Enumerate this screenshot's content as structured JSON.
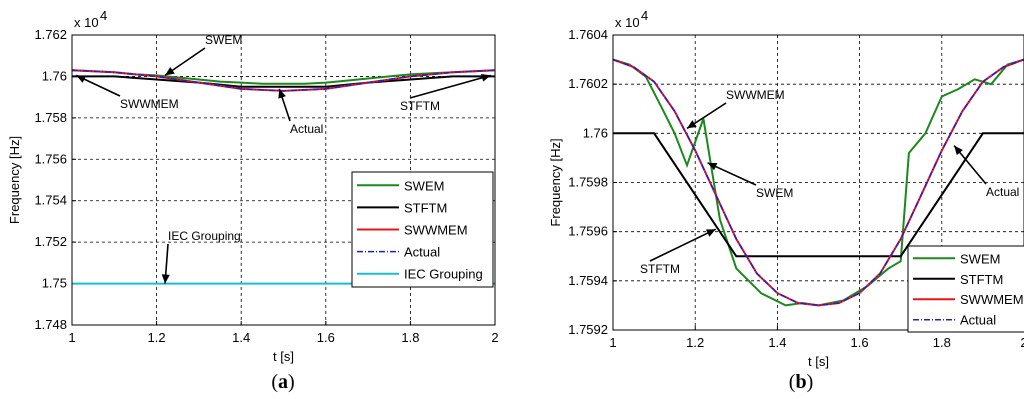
{
  "chart_data": [
    {
      "type": "line",
      "caption": "a",
      "exponent": "x 10",
      "exponent_power": "4",
      "xlabel": "t [s]",
      "ylabel": "Frequency [Hz]",
      "xlim": [
        1,
        2
      ],
      "ylim": [
        1.748,
        1.762
      ],
      "xticks": [
        "1",
        "1.2",
        "1.4",
        "1.6",
        "1.8",
        "2"
      ],
      "yticks": [
        "1.748",
        "1.75",
        "1.752",
        "1.754",
        "1.756",
        "1.758",
        "1.76",
        "1.762"
      ],
      "grid": true,
      "legend_position": "lower-right",
      "series": [
        {
          "name": "SWEM",
          "color": "#1a8a1a",
          "x": [
            1,
            1.05,
            1.1,
            1.15,
            1.2,
            1.25,
            1.3,
            1.35,
            1.4,
            1.45,
            1.5,
            1.55,
            1.6,
            1.65,
            1.7,
            1.75,
            1.8,
            1.85,
            1.9,
            1.95,
            2
          ],
          "y": [
            1.7603,
            1.76025,
            1.7602,
            1.7601,
            1.76005,
            1.75995,
            1.75985,
            1.75975,
            1.7597,
            1.75965,
            1.75965,
            1.75965,
            1.7597,
            1.7598,
            1.7599,
            1.76,
            1.7601,
            1.76015,
            1.7602,
            1.76025,
            1.7603
          ]
        },
        {
          "name": "STFTM",
          "color": "#000000",
          "x": [
            1,
            1.1,
            1.2,
            1.3,
            1.4,
            1.5,
            1.6,
            1.7,
            1.8,
            1.9,
            2
          ],
          "y": [
            1.76,
            1.76,
            1.75985,
            1.7597,
            1.7595,
            1.7595,
            1.7595,
            1.7597,
            1.75985,
            1.76,
            1.76
          ]
        },
        {
          "name": "SWWMEM",
          "color": "#e8161b",
          "x": [
            1,
            1.1,
            1.2,
            1.3,
            1.4,
            1.5,
            1.6,
            1.7,
            1.8,
            1.9,
            2
          ],
          "y": [
            1.7603,
            1.7602,
            1.76,
            1.7597,
            1.7594,
            1.7593,
            1.7594,
            1.7597,
            1.76,
            1.7602,
            1.7603
          ]
        },
        {
          "name": "Actual",
          "color": "#1f1fd0",
          "dash": true,
          "x": [
            1,
            1.1,
            1.2,
            1.3,
            1.4,
            1.5,
            1.6,
            1.7,
            1.8,
            1.9,
            2
          ],
          "y": [
            1.7603,
            1.7602,
            1.76,
            1.7597,
            1.7594,
            1.7593,
            1.7594,
            1.7597,
            1.76,
            1.7602,
            1.7603
          ]
        },
        {
          "name": "IEC Grouping",
          "color": "#17bfcf",
          "x": [
            1,
            2
          ],
          "y": [
            1.75,
            1.75
          ]
        }
      ],
      "annotations": [
        {
          "text": "SWEM",
          "target": [
            1.22,
            1.76005
          ]
        },
        {
          "text": "SWWMEM",
          "target": [
            1.01,
            1.76005
          ]
        },
        {
          "text": "Actual",
          "target": [
            1.49,
            1.7594
          ]
        },
        {
          "text": "STFTM",
          "target": [
            1.99,
            1.76005
          ]
        },
        {
          "text": "IEC Grouping",
          "target": [
            1.22,
            1.75
          ]
        }
      ]
    },
    {
      "type": "line",
      "caption": "b",
      "exponent": "x 10",
      "exponent_power": "4",
      "xlabel": "t [s]",
      "ylabel": "Frequency [Hz]",
      "xlim": [
        1,
        2
      ],
      "ylim": [
        1.7592,
        1.7604
      ],
      "xticks": [
        "1",
        "1.2",
        "1.4",
        "1.6",
        "1.8",
        "2"
      ],
      "yticks": [
        "1.7592",
        "1.7594",
        "1.7596",
        "1.7598",
        "1.76",
        "1.7602",
        "1.7604"
      ],
      "grid": true,
      "legend_position": "lower-right",
      "series": [
        {
          "name": "SWEM",
          "color": "#1a8a1a",
          "x": [
            1,
            1.04,
            1.08,
            1.12,
            1.15,
            1.18,
            1.22,
            1.26,
            1.3,
            1.36,
            1.42,
            1.46,
            1.5,
            1.56,
            1.62,
            1.67,
            1.7,
            1.72,
            1.76,
            1.8,
            1.84,
            1.88,
            1.92,
            1.96,
            2
          ],
          "y": [
            1.7603,
            1.76028,
            1.76023,
            1.7601,
            1.76,
            1.75987,
            1.76006,
            1.75965,
            1.75945,
            1.75935,
            1.7593,
            1.75931,
            1.7593,
            1.75932,
            1.75938,
            1.75945,
            1.75948,
            1.75992,
            1.76,
            1.76015,
            1.76018,
            1.76022,
            1.7602,
            1.76028,
            1.7603
          ]
        },
        {
          "name": "STFTM",
          "color": "#000000",
          "x": [
            1,
            1.1,
            1.3,
            1.7,
            1.9,
            2
          ],
          "y": [
            1.76,
            1.76,
            1.7595,
            1.7595,
            1.76,
            1.76
          ]
        },
        {
          "name": "SWWMEM",
          "color": "#e8161b",
          "x": [
            1,
            1.05,
            1.1,
            1.15,
            1.2,
            1.25,
            1.3,
            1.35,
            1.4,
            1.45,
            1.5,
            1.55,
            1.6,
            1.65,
            1.7,
            1.75,
            1.8,
            1.85,
            1.9,
            1.95,
            2
          ],
          "y": [
            1.7603,
            1.76027,
            1.76021,
            1.76009,
            1.75993,
            1.75975,
            1.75957,
            1.75943,
            1.75935,
            1.75931,
            1.7593,
            1.75931,
            1.75935,
            1.75943,
            1.75957,
            1.75975,
            1.75993,
            1.76009,
            1.76021,
            1.76027,
            1.7603
          ]
        },
        {
          "name": "Actual",
          "color": "#1f1fd0",
          "dash": true,
          "x": [
            1,
            1.05,
            1.1,
            1.15,
            1.2,
            1.25,
            1.3,
            1.35,
            1.4,
            1.45,
            1.5,
            1.55,
            1.6,
            1.65,
            1.7,
            1.75,
            1.8,
            1.85,
            1.9,
            1.95,
            2
          ],
          "y": [
            1.7603,
            1.76027,
            1.76021,
            1.76009,
            1.75993,
            1.75975,
            1.75957,
            1.75943,
            1.75935,
            1.75931,
            1.7593,
            1.75931,
            1.75935,
            1.75943,
            1.75957,
            1.75975,
            1.75993,
            1.76009,
            1.76021,
            1.76027,
            1.7603
          ]
        }
      ],
      "annotations": [
        {
          "text": "SWWMEM",
          "target": [
            1.18,
            1.76002
          ]
        },
        {
          "text": "SWEM",
          "target": [
            1.23,
            1.75988
          ]
        },
        {
          "text": "STFTM",
          "target": [
            1.25,
            1.75961
          ]
        },
        {
          "text": "Actual",
          "target": [
            1.83,
            1.75995
          ]
        }
      ]
    }
  ]
}
